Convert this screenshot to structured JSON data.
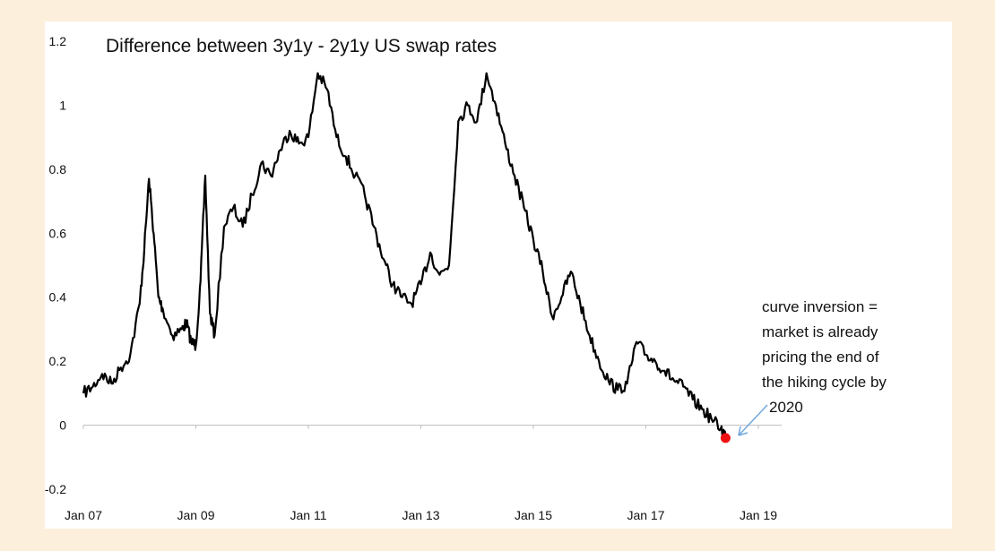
{
  "colors": {
    "page_background": "#fcefdc",
    "plot_background": "#ffffff",
    "line": "#000000",
    "zero_line": "#bdbdbd",
    "marker": "#ee1111",
    "arrow": "#6fa8dc"
  },
  "chart_data": {
    "type": "line",
    "title": "Difference between 3y1y - 2y1y US swap rates",
    "xlabel": "",
    "ylabel": "",
    "ylim": [
      -0.2,
      1.2
    ],
    "yticks": [
      -0.2,
      0,
      0.2,
      0.4,
      0.6,
      0.8,
      1,
      1.2
    ],
    "ytick_labels": [
      "-0.2",
      "0",
      "0.2",
      "0.4",
      "0.6",
      "0.8",
      "1",
      "1.2"
    ],
    "xlim": [
      "2007-01",
      "2019-01"
    ],
    "xtick_labels": [
      "Jan 07",
      "Jan 09",
      "Jan 11",
      "Jan 13",
      "Jan 15",
      "Jan 17",
      "Jan 19"
    ],
    "grid": false,
    "series": [
      {
        "x": [
          "2007-01",
          "2007-03",
          "2007-05",
          "2007-07",
          "2007-09",
          "2007-11",
          "2008-01",
          "2008-02",
          "2008-03",
          "2008-04",
          "2008-05",
          "2008-06",
          "2008-08",
          "2008-10",
          "2008-11",
          "2008-12",
          "2009-01",
          "2009-02",
          "2009-03",
          "2009-04",
          "2009-05",
          "2009-07",
          "2009-09",
          "2009-11",
          "2010-01",
          "2010-03",
          "2010-05",
          "2010-07",
          "2010-09",
          "2010-11",
          "2011-01",
          "2011-03",
          "2011-05",
          "2011-07",
          "2011-09",
          "2011-11",
          "2012-01",
          "2012-03",
          "2012-05",
          "2012-07",
          "2012-09",
          "2012-11",
          "2013-01",
          "2013-03",
          "2013-05",
          "2013-07",
          "2013-09",
          "2013-11",
          "2014-01",
          "2014-03",
          "2014-05",
          "2014-07",
          "2014-09",
          "2014-11",
          "2015-01",
          "2015-03",
          "2015-05",
          "2015-07",
          "2015-09",
          "2015-11",
          "2016-01",
          "2016-03",
          "2016-05",
          "2016-07",
          "2016-09",
          "2016-11",
          "2017-01",
          "2017-03",
          "2017-05",
          "2017-07",
          "2017-09",
          "2017-11",
          "2018-01",
          "2018-03",
          "2018-05",
          "2018-06"
        ],
        "values": [
          0.1,
          0.12,
          0.16,
          0.13,
          0.18,
          0.22,
          0.38,
          0.55,
          0.77,
          0.6,
          0.4,
          0.36,
          0.28,
          0.3,
          0.32,
          0.26,
          0.25,
          0.45,
          0.78,
          0.35,
          0.28,
          0.62,
          0.68,
          0.62,
          0.72,
          0.82,
          0.78,
          0.86,
          0.92,
          0.88,
          0.9,
          1.1,
          1.05,
          0.9,
          0.84,
          0.78,
          0.72,
          0.62,
          0.52,
          0.44,
          0.4,
          0.38,
          0.44,
          0.54,
          0.47,
          0.5,
          0.95,
          1.0,
          0.95,
          1.1,
          1.0,
          0.88,
          0.78,
          0.68,
          0.58,
          0.48,
          0.34,
          0.4,
          0.48,
          0.38,
          0.28,
          0.2,
          0.14,
          0.11,
          0.13,
          0.26,
          0.22,
          0.2,
          0.17,
          0.14,
          0.12,
          0.08,
          0.05,
          0.02,
          -0.01,
          -0.03
        ]
      }
    ],
    "marker": {
      "x": "2018-06",
      "y": -0.04
    },
    "annotation": {
      "lines": [
        "curve inversion =",
        "market is already",
        "pricing the end of",
        "the hiking cycle by",
        "2020"
      ]
    }
  }
}
